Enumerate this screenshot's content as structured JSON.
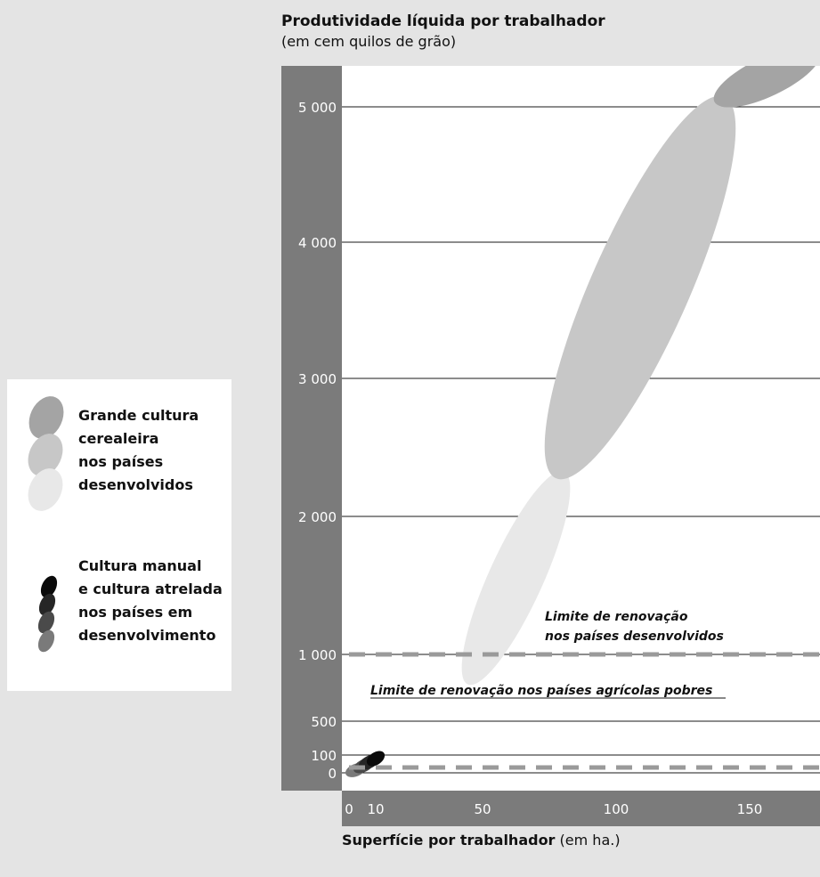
{
  "chart_data": {
    "type": "scatter",
    "title": "Produtividade líquida por trabalhador",
    "subtitle": "(em cem quilos de grão)",
    "xlabel_main": "Superfície por trabalhador",
    "xlabel_unit": " (em ha.)",
    "y_ticks": [
      {
        "value": 0,
        "label": "0"
      },
      {
        "value": 100,
        "label": "100"
      },
      {
        "value": 500,
        "label": "500"
      },
      {
        "value": 1000,
        "label": "1 000"
      },
      {
        "value": 2000,
        "label": "2 000"
      },
      {
        "value": 3000,
        "label": "3 000"
      },
      {
        "value": 4000,
        "label": "4 000"
      },
      {
        "value": 5000,
        "label": "5 000"
      }
    ],
    "x_ticks": [
      {
        "value": 0,
        "label": "0"
      },
      {
        "value": 10,
        "label": "10"
      },
      {
        "value": 50,
        "label": "50"
      },
      {
        "value": 100,
        "label": "100"
      },
      {
        "value": 150,
        "label": "150"
      }
    ],
    "xlim": [
      0,
      185
    ],
    "grid": true,
    "thresholds": [
      {
        "name": "Limite de renovação nos países desenvolvidos",
        "label_lines": [
          "Limite de renovação",
          "nos países desenvolvidos"
        ],
        "y": 1000,
        "x_start": 0
      },
      {
        "name": "Limite de renovação nos países agrícolas pobres",
        "label_lines": [
          "Limite de renovação nos países agrícolas pobres"
        ],
        "y": 30,
        "x_start": 0
      }
    ],
    "series": [
      {
        "group": "developed",
        "color": "#e8e8e8",
        "x_range": [
          45,
          80
        ],
        "y_range": [
          800,
          2300
        ]
      },
      {
        "group": "developed",
        "color": "#c7c7c7",
        "x_range": [
          78,
          140
        ],
        "y_range": [
          2300,
          5050
        ]
      },
      {
        "group": "developed",
        "color": "#a4a4a4",
        "x_range": [
          138,
          175
        ],
        "y_range": [
          5050,
          5400
        ]
      },
      {
        "group": "developing",
        "color": "#7a7a7a",
        "x_range": [
          0,
          5
        ],
        "y_range": [
          0,
          30
        ]
      },
      {
        "group": "developing",
        "color": "#4a4a4a",
        "x_range": [
          3,
          8
        ],
        "y_range": [
          20,
          60
        ]
      },
      {
        "group": "developing",
        "color": "#262626",
        "x_range": [
          5,
          10
        ],
        "y_range": [
          40,
          80
        ]
      },
      {
        "group": "developing",
        "color": "#0a0a0a",
        "x_range": [
          8,
          12
        ],
        "y_range": [
          60,
          100
        ]
      }
    ],
    "legend": [
      {
        "label_lines": [
          "Grande cultura",
          "cerealeira",
          "nos países",
          "desenvolvidos"
        ],
        "swatch_colors": [
          "#a4a4a4",
          "#c7c7c7",
          "#e8e8e8"
        ]
      },
      {
        "label_lines": [
          "Cultura manual",
          "e cultura atrelada",
          "nos países em",
          "desenvolvimento"
        ],
        "swatch_colors": [
          "#0a0a0a",
          "#262626",
          "#4a4a4a",
          "#7a7a7a"
        ]
      }
    ],
    "legend_position": "left"
  }
}
